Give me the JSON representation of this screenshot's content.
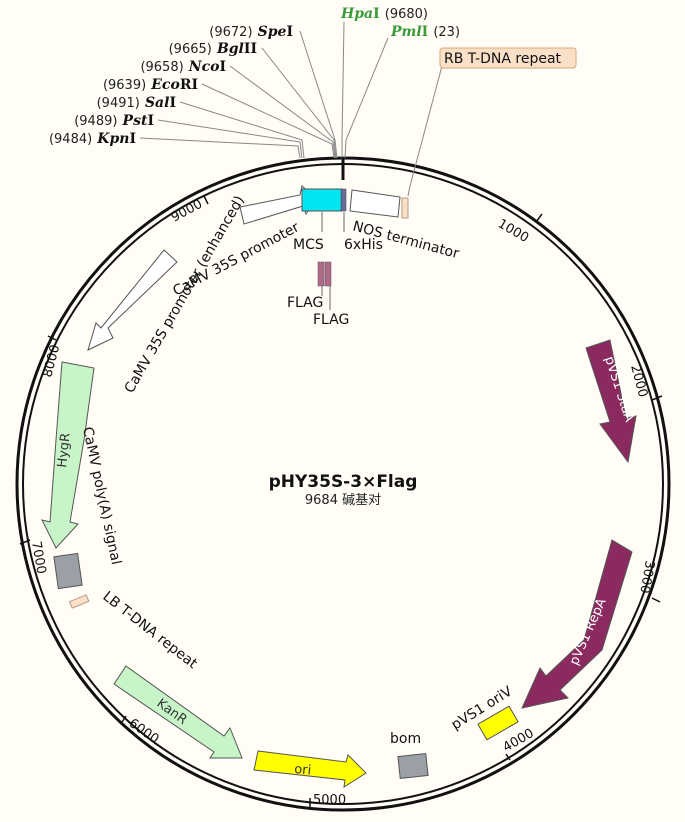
{
  "plasmid": {
    "name": "pHY35S-3×Flag",
    "size_label": "9684 碱基对",
    "length_bp": 9684
  },
  "ticks": [
    "1000",
    "2000",
    "3000",
    "4000",
    "5000",
    "6000",
    "7000",
    "8000",
    "9000"
  ],
  "enzymes_left": [
    {
      "pos": "(9672)",
      "name": "Spe",
      "suffix": "I"
    },
    {
      "pos": "(9665)",
      "name": "Bgl",
      "suffix": "II"
    },
    {
      "pos": "(9658)",
      "name": "Nco",
      "suffix": "I"
    },
    {
      "pos": "(9639)",
      "name": "Eco",
      "suffix": "RI"
    },
    {
      "pos": "(9491)",
      "name": "Sal",
      "suffix": "I"
    },
    {
      "pos": "(9489)",
      "name": "Pst",
      "suffix": "I"
    },
    {
      "pos": "(9484)",
      "name": "Kpn",
      "suffix": "I"
    }
  ],
  "enzymes_right": [
    {
      "pos": "(9680)",
      "name": "Hpa",
      "suffix": "I",
      "color": "#3a9a3a"
    },
    {
      "pos": "(23)",
      "name": "Pml",
      "suffix": "I",
      "color": "#3a9a3a"
    }
  ],
  "features": {
    "rb_repeat": "RB T-DNA repeat",
    "mcs": "MCS",
    "his": "6xHis",
    "nos": "NOS terminator",
    "flag1": "FLAG",
    "flag2": "FLAG",
    "camv": "CaMV 35S promoter",
    "camv_enh": "CaMV 35S promoter (enhanced)",
    "hygr": "HygR",
    "polya": "CaMV poly(A) signal",
    "lb_repeat": "LB T-DNA repeat",
    "kanr": "KanR",
    "ori": "ori",
    "bom": "bom",
    "pvs1_oriv": "pVS1 oriV",
    "pvs1_repa": "pVS1 RepA",
    "pvs1_staa": "pVS1 StaA"
  },
  "colors": {
    "staa": "#8b2a5e",
    "repa": "#8b2a5e",
    "hygr": "#c8f5c8",
    "kanr": "#c8f5c8",
    "ori": "#ffff00",
    "mcs": "#00e5f0",
    "rb_box": "#fbe0c8",
    "enzyme_green": "#3a9a3a"
  }
}
